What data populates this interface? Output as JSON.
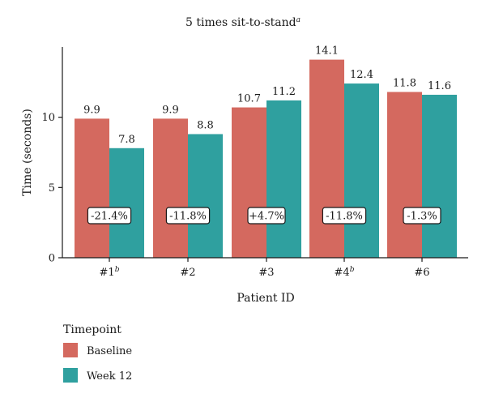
{
  "chart_data": {
    "type": "bar",
    "title": "5 times sit-to-stand",
    "title_sup": "a",
    "xlabel": "Patient ID",
    "ylabel": "Time (seconds)",
    "ylim": [
      0,
      15
    ],
    "yticks": [
      "0",
      "5",
      "10"
    ],
    "categories": [
      {
        "id": "#1",
        "sup": "b"
      },
      {
        "id": "#2",
        "sup": ""
      },
      {
        "id": "#3",
        "sup": ""
      },
      {
        "id": "#4",
        "sup": "b"
      },
      {
        "id": "#6",
        "sup": ""
      }
    ],
    "series": [
      {
        "name": "Baseline",
        "color": "#D4695F",
        "values": [
          9.9,
          9.9,
          10.7,
          14.1,
          11.8
        ]
      },
      {
        "name": "Week 12",
        "color": "#2FA09F",
        "values": [
          7.8,
          8.8,
          11.2,
          12.4,
          11.6
        ]
      }
    ],
    "value_labels": [
      [
        "9.9",
        "9.9",
        "10.7",
        "14.1",
        "11.8"
      ],
      [
        "7.8",
        "8.8",
        "11.2",
        "12.4",
        "11.6"
      ]
    ],
    "change_labels": [
      "-21.4%",
      "-11.8%",
      "+4.7%",
      "-11.8%",
      "-1.3%"
    ],
    "change_label_y": 3,
    "legend_title": "Timepoint",
    "legend_placement": "bottom-left",
    "grid": false
  }
}
